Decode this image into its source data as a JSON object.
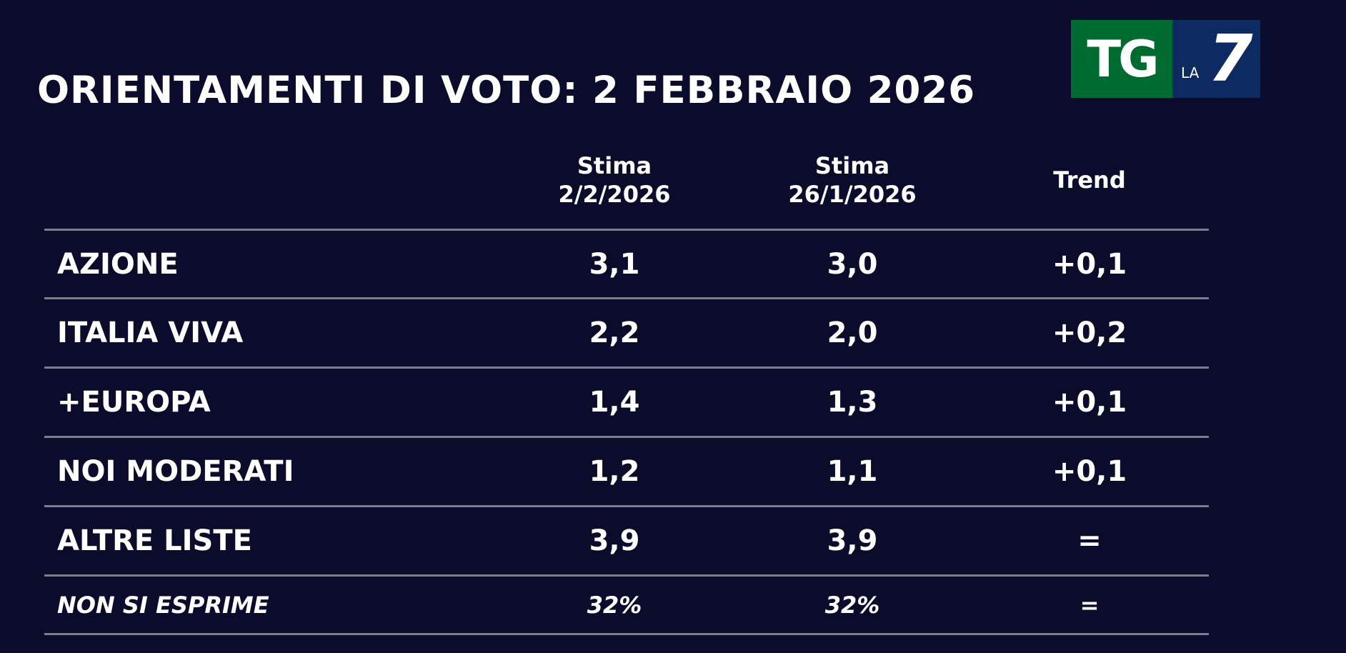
{
  "title": "ORIENTAMENTI DI VOTO: 2 FEBBRAIO 2026",
  "logo": {
    "tg": "TG",
    "la": "LA",
    "seven": "7"
  },
  "columns": [
    {
      "line1": "Stima",
      "line2": "2/2/2026"
    },
    {
      "line1": "Stima",
      "line2": "26/1/2026"
    },
    {
      "line1": "Trend",
      "line2": ""
    }
  ],
  "rows": [
    {
      "label": "AZIONE",
      "current": "3,1",
      "previous": "3,0",
      "trend": "+0,1"
    },
    {
      "label": "ITALIA VIVA",
      "current": "2,2",
      "previous": "2,0",
      "trend": "+0,2"
    },
    {
      "label": "+EUROPA",
      "current": "1,4",
      "previous": "1,3",
      "trend": "+0,1"
    },
    {
      "label": "NOI MODERATI",
      "current": "1,2",
      "previous": "1,1",
      "trend": "+0,1"
    },
    {
      "label": "ALTRE LISTE",
      "current": "3,9",
      "previous": "3,9",
      "trend": "="
    },
    {
      "label": "NON SI ESPRIME",
      "current": "32%",
      "previous": "32%",
      "trend": "="
    }
  ],
  "colors": {
    "background": "#0b0c2c",
    "logo_green": "#006b30",
    "logo_blue": "#0d2a63",
    "divider": "#7a7c8e"
  }
}
